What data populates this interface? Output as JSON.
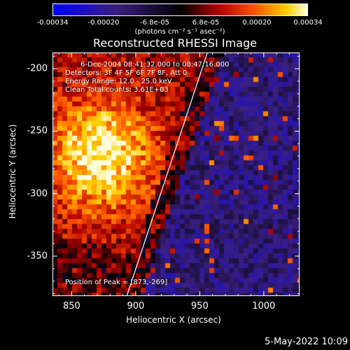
{
  "colorbar": {
    "tick_labels": [
      "-0.00034",
      "-0.00020",
      "-6.8e-05",
      "6.8e-05",
      "0.00020",
      "0.00034"
    ],
    "unit_label": "(photons cm⁻² s⁻¹ asec⁻²)",
    "range": [
      -0.00034,
      0.00034
    ]
  },
  "chart_data": {
    "type": "heatmap",
    "title": "Reconstructed RHESSI Image",
    "xlabel": "Heliocentric X (arcsec)",
    "ylabel": "Heliocentric Y (arcsec)",
    "xlim": [
      835,
      1028
    ],
    "ylim": [
      -382,
      -187
    ],
    "x_ticks": [
      850,
      900,
      950,
      1000
    ],
    "y_ticks": [
      -200,
      -250,
      -300,
      -350
    ],
    "limb_line": {
      "x": [
        893,
        956
      ],
      "y": [
        -382,
        -187
      ]
    },
    "peak_position": [
      873,
      -269
    ],
    "info_lines": [
      "6-Dec-2004 08:41:32.000 to 08:47:16.000",
      "Detectors: 3F 4F 5F 6F 7F 8F, Att 0",
      "Energy Range: 12.0 - 25.0 keV",
      "Clean     Total counts: 3.61E+03"
    ],
    "peak_label": "Position of Peak = [873,-269]"
  },
  "datestamp": "5-May-2022 10:09"
}
